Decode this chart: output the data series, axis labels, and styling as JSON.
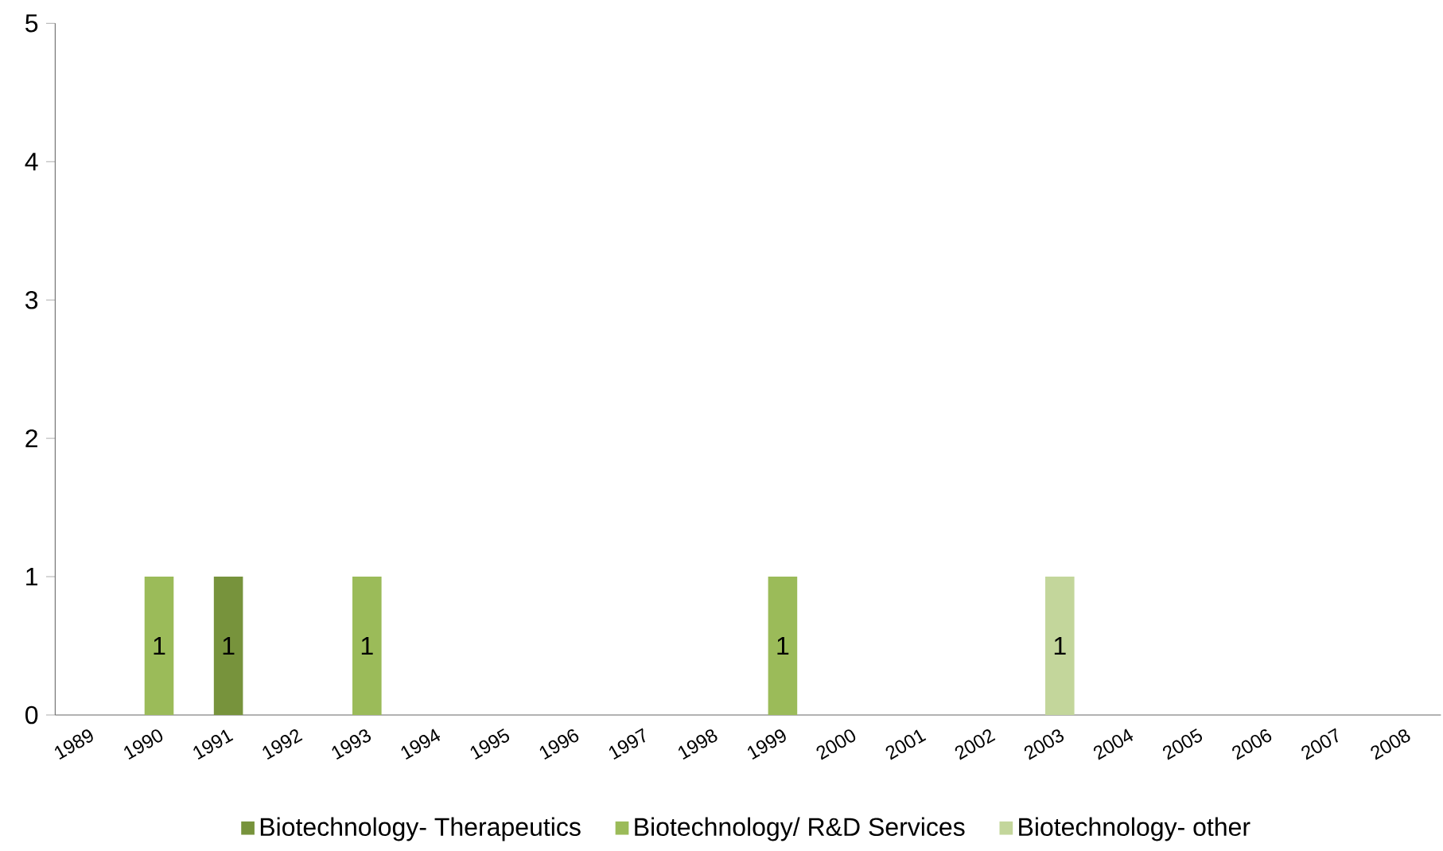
{
  "chart_data": {
    "type": "bar",
    "categories": [
      "1989",
      "1990",
      "1991",
      "1992",
      "1993",
      "1994",
      "1995",
      "1996",
      "1997",
      "1998",
      "1999",
      "2000",
      "2001",
      "2002",
      "2003",
      "2004",
      "2005",
      "2006",
      "2007",
      "2008"
    ],
    "series": [
      {
        "name": "Biotechnology- Therapeutics",
        "color": "#77933c",
        "values": [
          null,
          null,
          1,
          null,
          null,
          null,
          null,
          null,
          null,
          null,
          null,
          null,
          null,
          null,
          null,
          null,
          null,
          null,
          null,
          null
        ],
        "value_labels": [
          null,
          null,
          "1",
          null,
          null,
          null,
          null,
          null,
          null,
          null,
          null,
          null,
          null,
          null,
          null,
          null,
          null,
          null,
          null,
          null
        ]
      },
      {
        "name": "Biotechnology/ R&D Services",
        "color": "#9bbb59",
        "values": [
          null,
          1,
          null,
          null,
          1,
          null,
          null,
          null,
          null,
          null,
          1,
          null,
          null,
          null,
          null,
          null,
          null,
          null,
          null,
          null
        ],
        "value_labels": [
          null,
          "1",
          null,
          null,
          "1",
          null,
          null,
          null,
          null,
          null,
          "1",
          null,
          null,
          null,
          null,
          null,
          null,
          null,
          null,
          null
        ]
      },
      {
        "name": "Biotechnology- other",
        "color": "#c3d69b",
        "values": [
          null,
          null,
          null,
          null,
          null,
          null,
          null,
          null,
          null,
          null,
          null,
          null,
          null,
          null,
          1,
          null,
          null,
          null,
          null,
          null
        ],
        "value_labels": [
          null,
          null,
          null,
          null,
          null,
          null,
          null,
          null,
          null,
          null,
          null,
          null,
          null,
          null,
          "1",
          null,
          null,
          null,
          null,
          null
        ]
      }
    ],
    "ylim": [
      0,
      5
    ],
    "yticks": [
      0,
      1,
      2,
      3,
      4,
      5
    ],
    "grid": false,
    "legend": "bottom"
  }
}
